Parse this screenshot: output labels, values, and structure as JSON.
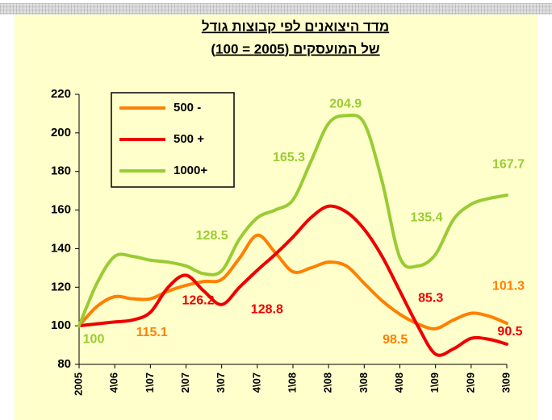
{
  "chart_data": {
    "type": "line",
    "title_lines": [
      "מדד היצואנים לפי קבוצות גודל",
      "של המועסקים (2005 = 100)"
    ],
    "categories": [
      "2005",
      null,
      "4\\06",
      null,
      "1\\07",
      null,
      "2\\07",
      null,
      "3\\07",
      null,
      "4\\07",
      null,
      "1\\08",
      null,
      "2\\08",
      null,
      "3\\08",
      null,
      "4\\08",
      null,
      "1\\09",
      null,
      "2\\09",
      null,
      "3\\09"
    ],
    "series": [
      {
        "name": "500 -",
        "color": "#ff8000",
        "values": [
          100,
          110,
          115.1,
          114,
          114,
          118,
          121,
          123,
          124,
          135,
          147,
          138,
          128,
          130,
          133,
          131,
          122,
          113,
          106,
          101,
          98.5,
          103,
          106.5,
          105,
          101.3
        ]
      },
      {
        "name": "500 +",
        "color": "#ee0000",
        "values": [
          100,
          101,
          102,
          103,
          107,
          120,
          126.2,
          118,
          111,
          120,
          128.8,
          137,
          146,
          156,
          162,
          159,
          150,
          136,
          118,
          100,
          85.3,
          88,
          93.5,
          93,
          90.5
        ]
      },
      {
        "name": "1000+",
        "color": "#99cc33",
        "values": [
          100,
          122,
          136,
          136,
          134,
          133,
          131,
          127,
          128.5,
          145,
          156,
          160,
          165.3,
          185,
          204.9,
          209,
          205,
          175,
          135.4,
          131,
          137,
          155,
          163,
          166,
          167.7
        ]
      }
    ],
    "ylim": [
      80,
      220
    ],
    "yticks": [
      80,
      100,
      120,
      140,
      160,
      180,
      200,
      220
    ]
  }
}
